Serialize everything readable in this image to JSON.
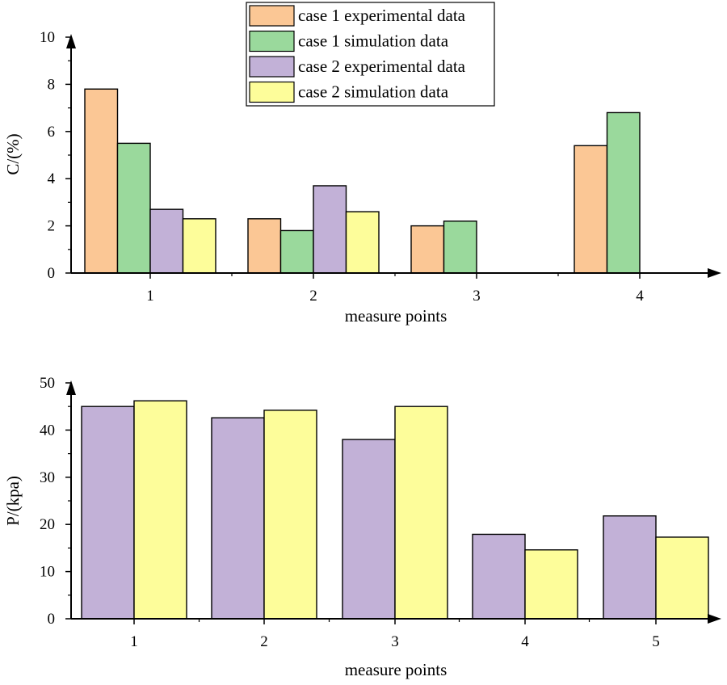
{
  "colors": {
    "case1_exp": "#FBC795",
    "case1_sim": "#9AD99C",
    "case2_exp": "#C2B1D7",
    "case2_sim": "#FDFD9A"
  },
  "chart_data": [
    {
      "type": "bar",
      "title": "",
      "xlabel": "measure points",
      "ylabel": "C/(%)",
      "categories": [
        "1",
        "2",
        "3",
        "4"
      ],
      "ylim": [
        0,
        10
      ],
      "yticks": [
        "0",
        "2",
        "4",
        "6",
        "8",
        "10"
      ],
      "grid": false,
      "legend_position": "top-center",
      "series": [
        {
          "name": "case 1 experimental data",
          "color_key": "case1_exp",
          "values": [
            7.8,
            2.3,
            2.0,
            5.4
          ]
        },
        {
          "name": "case 1 simulation data",
          "color_key": "case1_sim",
          "values": [
            5.5,
            1.8,
            2.2,
            6.8
          ]
        },
        {
          "name": "case 2 experimental data",
          "color_key": "case2_exp",
          "values": [
            2.7,
            3.7,
            null,
            null
          ]
        },
        {
          "name": "case 2 simulation data",
          "color_key": "case2_sim",
          "values": [
            2.3,
            2.6,
            null,
            null
          ]
        }
      ]
    },
    {
      "type": "bar",
      "title": "",
      "xlabel": "measure points",
      "ylabel": "P/(kpa)",
      "categories": [
        "1",
        "2",
        "3",
        "4",
        "5"
      ],
      "ylim": [
        0,
        50
      ],
      "yticks": [
        "0",
        "10",
        "20",
        "30",
        "40",
        "50"
      ],
      "grid": false,
      "series": [
        {
          "color_key": "case2_exp",
          "values": [
            45.0,
            42.6,
            38.0,
            17.9,
            21.8
          ]
        },
        {
          "color_key": "case2_sim",
          "values": [
            46.2,
            44.2,
            45.0,
            14.6,
            17.3
          ]
        }
      ]
    }
  ]
}
